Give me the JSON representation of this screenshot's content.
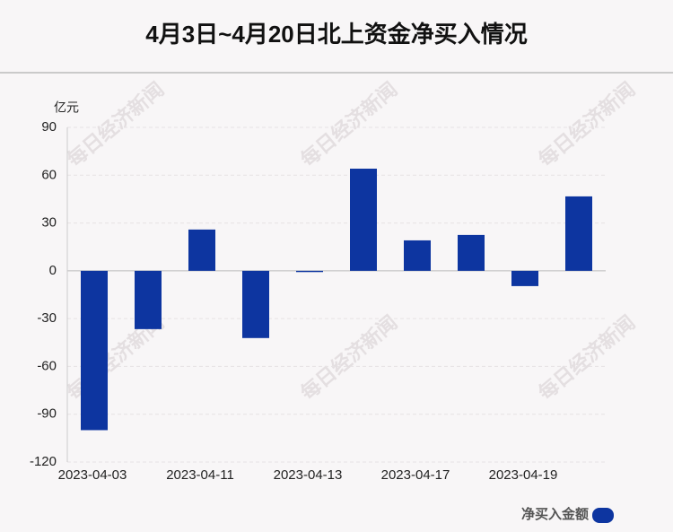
{
  "chart_data": {
    "type": "bar",
    "title": "4月3日~4月20日北上资金净买入情况",
    "y_axis_label": "亿元",
    "categories": [
      "2023-04-03",
      null,
      "2023-04-11",
      null,
      "2023-04-13",
      null,
      "2023-04-17",
      null,
      "2023-04-19",
      null
    ],
    "series": [
      {
        "name": "净买入金额",
        "color": "#0d35a0",
        "values": [
          -100,
          -36.6,
          25.9,
          -42.2,
          -0.8,
          64.1,
          19.1,
          22.5,
          -9.6,
          46.7
        ]
      }
    ],
    "ylim": [
      -120,
      90
    ],
    "yticks": [
      -120,
      -90,
      -60,
      -30,
      0,
      30,
      60,
      90
    ],
    "grid": true,
    "legend": "bottom-right",
    "watermark": "每日经济新闻"
  }
}
